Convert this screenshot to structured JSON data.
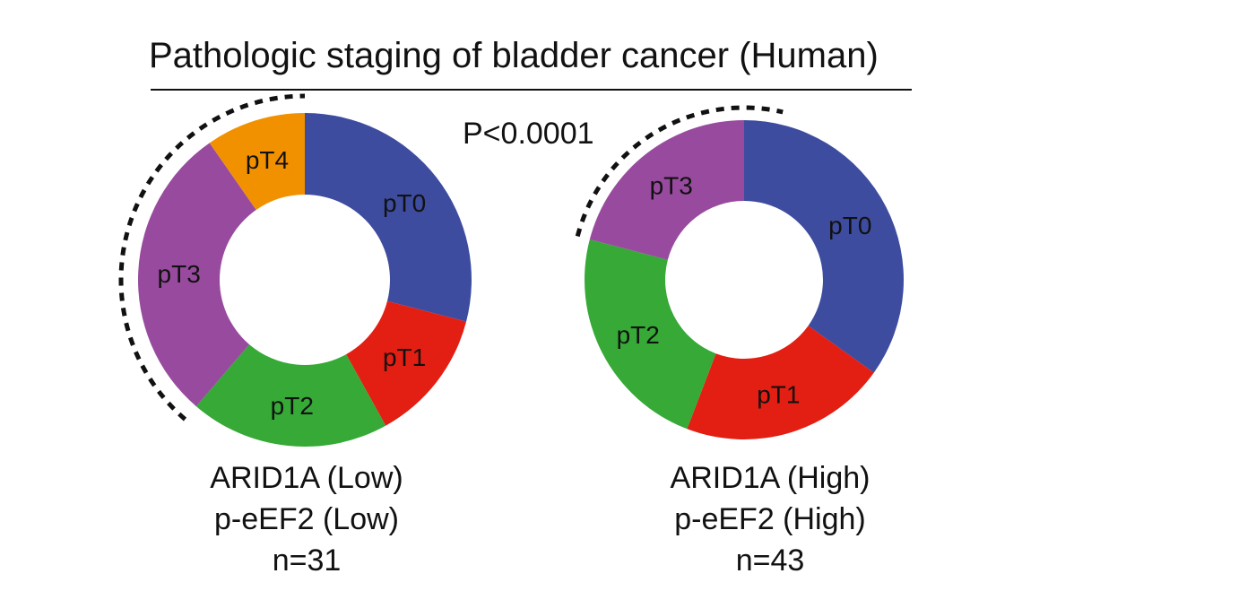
{
  "title": "Pathologic staging of bladder cancer (Human)",
  "p_value": "P<0.0001",
  "chart_data": [
    {
      "type": "pie",
      "donut": true,
      "caption": [
        "ARID1A (Low)",
        "p-eEF2 (Low)",
        "n=31"
      ],
      "slices": [
        {
          "label": "pT0",
          "value": 9,
          "color": "#3d4c9e"
        },
        {
          "label": "pT1",
          "value": 4,
          "color": "#e31e13"
        },
        {
          "label": "pT2",
          "value": 6,
          "color": "#36a937"
        },
        {
          "label": "pT3",
          "value": 9,
          "color": "#984b9e"
        },
        {
          "label": "pT4",
          "value": 3,
          "color": "#f29100"
        }
      ]
    },
    {
      "type": "pie",
      "donut": true,
      "caption": [
        "ARID1A (High)",
        "p-eEF2 (High)",
        "n=43"
      ],
      "slices": [
        {
          "label": "pT0",
          "value": 15,
          "color": "#3d4c9e"
        },
        {
          "label": "pT1",
          "value": 9,
          "color": "#e31e13"
        },
        {
          "label": "pT2",
          "value": 10,
          "color": "#36a937"
        },
        {
          "label": "pT3",
          "value": 9,
          "color": "#984b9e"
        }
      ]
    }
  ]
}
